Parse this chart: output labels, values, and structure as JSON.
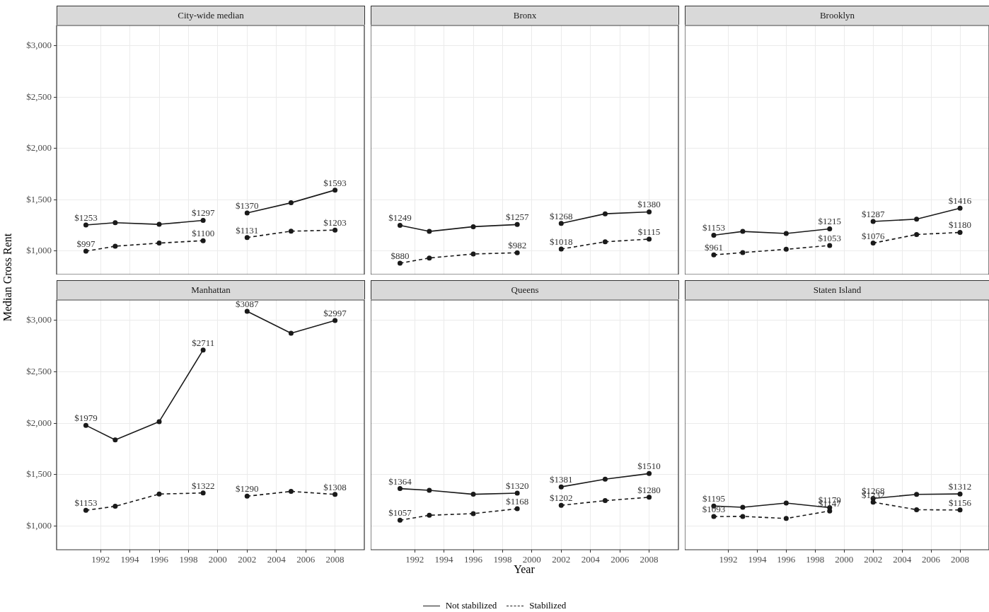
{
  "chart_data": [
    {
      "type": "line",
      "title": "City-wide median",
      "legend": "bottom",
      "x": [
        1991,
        1993,
        1996,
        1999,
        2000,
        2002,
        2005,
        2008
      ],
      "xlim": [
        1989,
        2010
      ],
      "xticks": [
        1992,
        1994,
        1996,
        1998,
        2000,
        2002,
        2004,
        2006,
        2008
      ],
      "ylim": [
        770,
        3197
      ],
      "yticks": [
        {
          "value": 1000,
          "label": "$1,000"
        },
        {
          "value": 1500,
          "label": "$1,500"
        },
        {
          "value": 2000,
          "label": "$2,000"
        },
        {
          "value": 2500,
          "label": "$2,500"
        },
        {
          "value": 3000,
          "label": "$3,000"
        }
      ],
      "grid": true,
      "marker": "circle",
      "tick_labels": "y",
      "series": [
        {
          "name": "Not stabilized",
          "color": "#1a1a1a",
          "line_style": "solid",
          "values": [
            1253,
            1275,
            1259,
            1297,
            null,
            1370,
            1469,
            1593
          ],
          "value_labels": [
            "$1253",
            null,
            null,
            "$1297",
            null,
            "$1370",
            null,
            "$1593"
          ]
        },
        {
          "name": "Stabilized",
          "color": "#1a1a1a",
          "line_style": "dashed",
          "values": [
            997,
            1046,
            1076,
            1100,
            null,
            1131,
            1192,
            1203
          ],
          "value_labels": [
            "$997",
            null,
            null,
            "$1100",
            null,
            "$1131",
            null,
            "$1203"
          ]
        }
      ]
    },
    {
      "type": "line",
      "title": "Bronx",
      "x": [
        1991,
        1993,
        1996,
        1999,
        2000,
        2002,
        2005,
        2008
      ],
      "xlim": [
        1989,
        2010
      ],
      "xticks": [
        1992,
        1994,
        1996,
        1998,
        2000,
        2002,
        2004,
        2006,
        2008
      ],
      "ylim": [
        770,
        3197
      ],
      "yticks": [
        1000,
        1500,
        2000,
        2500,
        3000
      ],
      "grid": true,
      "marker": "circle",
      "tick_labels": false,
      "series": [
        {
          "color": "#1a1a1a",
          "line_style": "solid",
          "values": [
            1249,
            1190,
            1236,
            1257,
            null,
            1268,
            1362,
            1380
          ],
          "value_labels": [
            "$1249",
            null,
            null,
            "$1257",
            null,
            "$1268",
            null,
            "$1380"
          ]
        },
        {
          "color": "#1a1a1a",
          "line_style": "dashed",
          "values": [
            880,
            931,
            970,
            982,
            null,
            1018,
            1089,
            1115
          ],
          "value_labels": [
            "$880",
            null,
            null,
            "$982",
            null,
            "$1018",
            null,
            "$1115"
          ]
        }
      ]
    },
    {
      "type": "line",
      "title": "Brooklyn",
      "x": [
        1991,
        1993,
        1996,
        1999,
        2000,
        2002,
        2005,
        2008
      ],
      "xlim": [
        1989,
        2010
      ],
      "xticks": [
        1992,
        1994,
        1996,
        1998,
        2000,
        2002,
        2004,
        2006,
        2008
      ],
      "ylim": [
        770,
        3197
      ],
      "yticks": [
        1000,
        1500,
        2000,
        2500,
        3000
      ],
      "grid": true,
      "marker": "circle",
      "tick_labels": false,
      "series": [
        {
          "color": "#1a1a1a",
          "line_style": "solid",
          "values": [
            1153,
            1190,
            1170,
            1215,
            null,
            1287,
            1309,
            1416
          ],
          "value_labels": [
            "$1153",
            null,
            null,
            "$1215",
            null,
            "$1287",
            null,
            "$1416"
          ]
        },
        {
          "color": "#1a1a1a",
          "line_style": "dashed",
          "values": [
            961,
            984,
            1016,
            1053,
            null,
            1076,
            1160,
            1180
          ],
          "value_labels": [
            "$961",
            null,
            null,
            "$1053",
            null,
            "$1076",
            null,
            "$1180"
          ]
        }
      ]
    },
    {
      "type": "line",
      "title": "Manhattan",
      "ylabel": "Median Gross Rent",
      "x": [
        1991,
        1993,
        1996,
        1999,
        2000,
        2002,
        2005,
        2008
      ],
      "xlim": [
        1989,
        2010
      ],
      "xticks": [
        1992,
        1994,
        1996,
        1998,
        2000,
        2002,
        2004,
        2006,
        2008
      ],
      "ylim": [
        770,
        3197
      ],
      "yticks": [
        {
          "value": 1000,
          "label": "$1,000"
        },
        {
          "value": 1500,
          "label": "$1,500"
        },
        {
          "value": 2000,
          "label": "$2,000"
        },
        {
          "value": 2500,
          "label": "$2,500"
        },
        {
          "value": 3000,
          "label": "$3,000"
        }
      ],
      "grid": true,
      "marker": "circle",
      "series": [
        {
          "color": "#1a1a1a",
          "line_style": "solid",
          "values": [
            1979,
            1838,
            2015,
            2711,
            null,
            3087,
            2874,
            2997
          ],
          "value_labels": [
            "$1979",
            null,
            null,
            "$2711",
            null,
            "$3087",
            null,
            "$2997"
          ]
        },
        {
          "color": "#1a1a1a",
          "line_style": "dashed",
          "values": [
            1153,
            1192,
            1311,
            1322,
            null,
            1290,
            1337,
            1308
          ],
          "value_labels": [
            "$1153",
            null,
            null,
            "$1322",
            null,
            "$1290",
            null,
            "$1308"
          ]
        }
      ]
    },
    {
      "type": "line",
      "title": "Queens",
      "xlabel": "Year",
      "x": [
        1991,
        1993,
        1996,
        1999,
        2000,
        2002,
        2005,
        2008
      ],
      "xlim": [
        1989,
        2010
      ],
      "xticks": [
        1992,
        1994,
        1996,
        1998,
        2000,
        2002,
        2004,
        2006,
        2008
      ],
      "ylim": [
        770,
        3197
      ],
      "yticks": [
        1000,
        1500,
        2000,
        2500,
        3000
      ],
      "grid": true,
      "marker": "circle",
      "tick_labels": "x",
      "series": [
        {
          "color": "#1a1a1a",
          "line_style": "solid",
          "values": [
            1364,
            1348,
            1309,
            1320,
            null,
            1381,
            1456,
            1510
          ],
          "value_labels": [
            "$1364",
            null,
            null,
            "$1320",
            null,
            "$1381",
            null,
            "$1510"
          ]
        },
        {
          "color": "#1a1a1a",
          "line_style": "dashed",
          "values": [
            1057,
            1105,
            1121,
            1168,
            null,
            1202,
            1247,
            1280
          ],
          "value_labels": [
            "$1057",
            null,
            null,
            "$1168",
            null,
            "$1202",
            null,
            "$1280"
          ]
        }
      ]
    },
    {
      "type": "line",
      "title": "Staten Island",
      "x": [
        1991,
        1993,
        1996,
        1999,
        2000,
        2002,
        2005,
        2008
      ],
      "xlim": [
        1989,
        2010
      ],
      "xticks": [
        1992,
        1994,
        1996,
        1998,
        2000,
        2002,
        2004,
        2006,
        2008
      ],
      "ylim": [
        770,
        3197
      ],
      "yticks": [
        1000,
        1500,
        2000,
        2500,
        3000
      ],
      "grid": true,
      "marker": "circle",
      "tick_labels": "x",
      "series": [
        {
          "color": "#1a1a1a",
          "line_style": "solid",
          "values": [
            1195,
            1183,
            1224,
            1179,
            null,
            1268,
            1308,
            1312
          ],
          "value_labels": [
            "$1195",
            null,
            null,
            "$1179",
            null,
            "$1268",
            null,
            "$1312"
          ]
        },
        {
          "color": "#1a1a1a",
          "line_style": "dashed",
          "values": [
            1093,
            1094,
            1074,
            1147,
            null,
            1232,
            1159,
            1156
          ],
          "value_labels": [
            "$1093",
            null,
            null,
            "$1147",
            null,
            "$1232",
            null,
            "$1156"
          ]
        }
      ]
    }
  ]
}
